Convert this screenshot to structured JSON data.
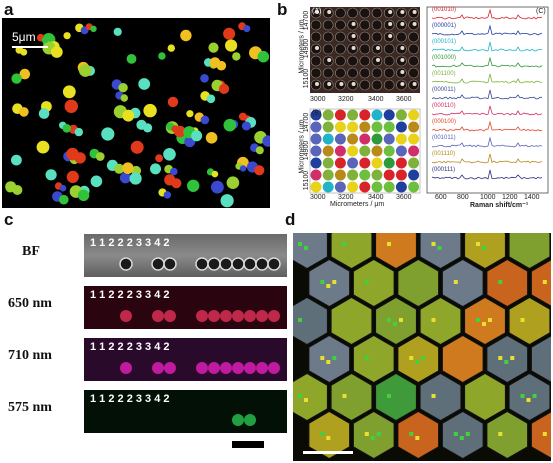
{
  "panels": {
    "a": {
      "label": "a",
      "scalebar_text": "5μm"
    },
    "b": {
      "label": "b",
      "subpanel_A": "(A)",
      "subpanel_B": "(B)",
      "subpanel_C": "(C)",
      "y_axis_label": "Micrometers / μm",
      "x_axis_label": "Micrometers / μm",
      "y_ticks": [
        "14700",
        "14900",
        "15100"
      ],
      "x_ticks": [
        "3000",
        "3200",
        "3400",
        "3600"
      ],
      "spectra_x_label": "Raman shift/cm⁻¹",
      "spectra_x_ticks": [
        "600",
        "800",
        "1000",
        "1200",
        "1400"
      ],
      "codes": [
        {
          "code": "(001010)",
          "color": "#d8232a"
        },
        {
          "code": "(000001)",
          "color": "#1f3f9f"
        },
        {
          "code": "(000101)",
          "color": "#22b3c8"
        },
        {
          "code": "(001000)",
          "color": "#2f9a3a"
        },
        {
          "code": "(001100)",
          "color": "#7fb23a"
        },
        {
          "code": "(000011)",
          "color": "#3a4a8f"
        },
        {
          "code": "(000110)",
          "color": "#cf2e6b"
        },
        {
          "code": "(000100)",
          "color": "#e04a2a"
        },
        {
          "code": "(001011)",
          "color": "#5a64b8"
        },
        {
          "code": "(001110)",
          "color": "#b88a1a"
        },
        {
          "code": "(000111)",
          "color": "#2c2f80"
        }
      ]
    },
    "c": {
      "label": "c",
      "rows": [
        {
          "label": "BF",
          "numbers": "1      1 2      2 2 3 3 4 2"
        },
        {
          "label": "650 nm",
          "numbers": "1      1 2      2 2 3 3 4 2"
        },
        {
          "label": "710 nm",
          "numbers": "1      1 2      2 2 3 3 4 2"
        },
        {
          "label": "575 nm",
          "numbers": "1      1 2      2 2 3 3 4 2"
        }
      ]
    },
    "d": {
      "label": "d"
    }
  }
}
